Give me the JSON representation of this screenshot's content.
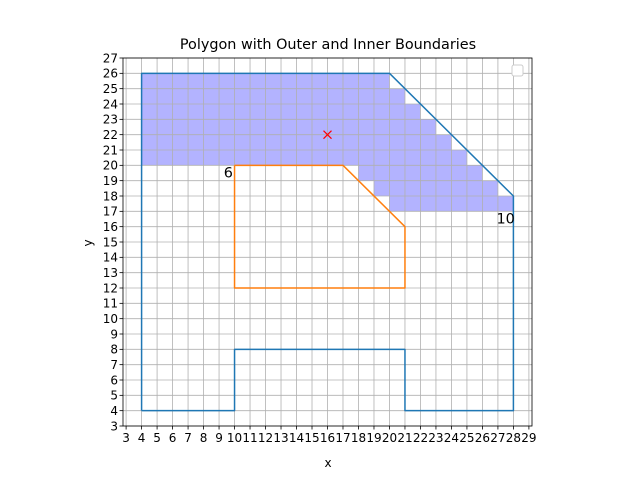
{
  "chart_data": {
    "type": "line",
    "title": "Polygon with Outer and Inner Boundaries",
    "xlabel": "x",
    "ylabel": "y",
    "xlim": [
      2.8,
      29.2
    ],
    "ylim": [
      3,
      27
    ],
    "xticks": [
      3,
      4,
      5,
      6,
      7,
      8,
      9,
      10,
      11,
      12,
      13,
      14,
      15,
      16,
      17,
      18,
      19,
      20,
      21,
      22,
      23,
      24,
      25,
      26,
      27,
      28,
      29
    ],
    "yticks": [
      3,
      4,
      5,
      6,
      7,
      8,
      9,
      10,
      11,
      12,
      13,
      14,
      15,
      16,
      17,
      18,
      19,
      20,
      21,
      22,
      23,
      24,
      25,
      26,
      27
    ],
    "grid": true,
    "legend": "top-right (empty)",
    "colors": {
      "outer": "#1f77b4",
      "inner": "#ff7f0e",
      "fill": "#b3b3ff",
      "marker": "#ff0000",
      "grid": "#b0b0b0"
    },
    "series": [
      {
        "role": "outer",
        "points": [
          [
            4,
            4
          ],
          [
            4,
            26
          ],
          [
            20,
            26
          ],
          [
            28,
            18
          ],
          [
            28,
            4
          ],
          [
            21,
            4
          ],
          [
            21,
            8
          ],
          [
            10,
            8
          ],
          [
            10,
            4
          ],
          [
            4,
            4
          ]
        ]
      },
      {
        "role": "inner",
        "points": [
          [
            10,
            20
          ],
          [
            17,
            20
          ],
          [
            21,
            16
          ],
          [
            21,
            12
          ],
          [
            10,
            12
          ],
          [
            10,
            20
          ]
        ]
      }
    ],
    "filled_cells": [
      {
        "y": 25,
        "x_from": 4,
        "x_to": 20
      },
      {
        "y": 24,
        "x_from": 4,
        "x_to": 21
      },
      {
        "y": 23,
        "x_from": 4,
        "x_to": 22
      },
      {
        "y": 22,
        "x_from": 4,
        "x_to": 23
      },
      {
        "y": 21,
        "x_from": 4,
        "x_to": 24
      },
      {
        "y": 20,
        "x_from": 4,
        "x_to": 25
      },
      {
        "y": 19,
        "x_from": 18,
        "x_to": 26
      },
      {
        "y": 18,
        "x_from": 19,
        "x_to": 27
      },
      {
        "y": 17,
        "x_from": 20,
        "x_to": 28
      }
    ],
    "marker": {
      "x": 16,
      "y": 22,
      "symbol": "x"
    },
    "annotations": [
      {
        "text": "6",
        "x": 9.6,
        "y": 19.5
      },
      {
        "text": "10",
        "x": 27.5,
        "y": 16.5
      }
    ]
  }
}
